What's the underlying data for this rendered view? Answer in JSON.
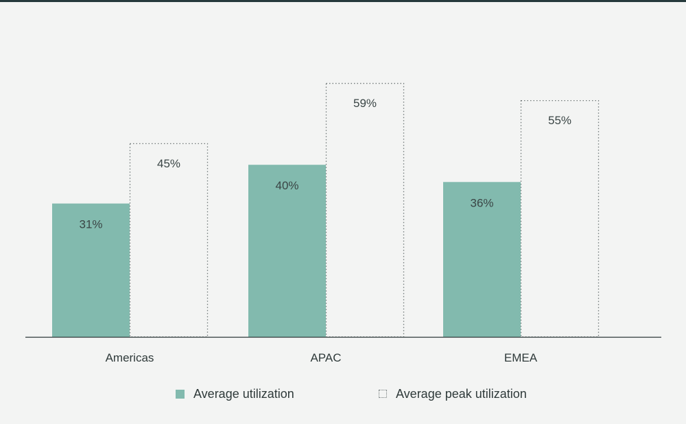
{
  "chart_data": {
    "type": "bar",
    "categories": [
      "Americas",
      "APAC",
      "EMEA"
    ],
    "series": [
      {
        "name": "Average utilization",
        "values": [
          31,
          40,
          36
        ],
        "style": "solid",
        "color": "#82baae"
      },
      {
        "name": "Average peak utilization",
        "values": [
          45,
          59,
          55
        ],
        "style": "dotted-outline",
        "color": "#6f7777"
      }
    ],
    "value_suffix": "%",
    "ylim": [
      0,
      60
    ],
    "grid": false,
    "legend_position": "bottom",
    "title": "",
    "xlabel": "",
    "ylabel": ""
  },
  "legend": {
    "avg_label": "Average utilization",
    "peak_label": "Average peak utilization"
  },
  "colors": {
    "background": "#f3f4f3",
    "bar_fill": "#82baae",
    "outline": "#6f7777",
    "axis": "#2f3a3a",
    "top_rule": "#263a3c"
  }
}
